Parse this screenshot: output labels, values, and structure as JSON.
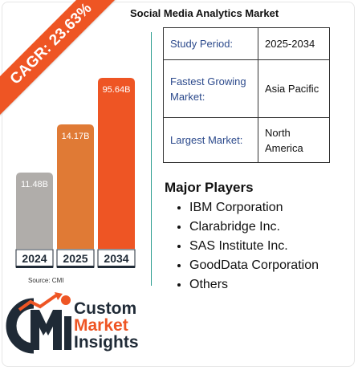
{
  "chart_data": {
    "type": "bar",
    "title": "Social Media Analytics Market",
    "categories": [
      "2024",
      "2025",
      "2034"
    ],
    "values": [
      11.48,
      14.17,
      95.64
    ],
    "value_labels": [
      "11.48B",
      "14.17B",
      "95.64B"
    ],
    "colors": [
      "#b0adaa",
      "#e07a35",
      "#ee5524"
    ],
    "value_label_colors": [
      "#ffffff",
      "#ffffff",
      "#ffffff"
    ],
    "grid": false,
    "legend": "none"
  },
  "header": {
    "title": "Social Media Analytics Market"
  },
  "ribbon": {
    "text": "CAGR: 23.63%"
  },
  "source": {
    "text": "Source: CMI"
  },
  "info_table": [
    {
      "key": "Study Period:",
      "value": "2025-2034"
    },
    {
      "key": "Fastest Growing Market:",
      "value": "Asia Pacific"
    },
    {
      "key": "Largest Market:",
      "value": "North America"
    }
  ],
  "players": {
    "title": "Major Players",
    "items": [
      "IBM Corporation",
      "Clarabridge Inc.",
      "SAS Institute Inc.",
      "GoodData Corporation",
      "Others"
    ]
  },
  "logo": {
    "line1": "Custom",
    "line2": "Market",
    "line3": "Insights",
    "monogram": "CMI"
  },
  "colors": {
    "accent": "#ee5524",
    "orange": "#e07a35",
    "gray": "#b0adaa",
    "navy": "#1f2a36",
    "teal": "#2a9c8f",
    "table_key": "#2c4a8c"
  }
}
